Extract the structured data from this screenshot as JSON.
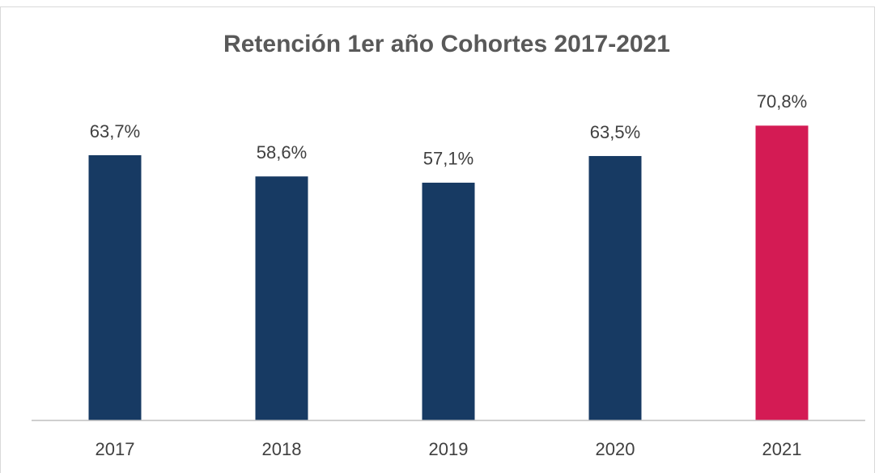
{
  "chart_data": {
    "type": "bar",
    "title": "Retención 1er año Cohortes 2017-2021",
    "categories": [
      "2017",
      "2018",
      "2019",
      "2020",
      "2021"
    ],
    "values": [
      63.7,
      58.6,
      57.1,
      63.5,
      70.8
    ],
    "value_labels": [
      "63,7%",
      "58,6%",
      "57,1%",
      "63,5%",
      "70,8%"
    ],
    "colors": [
      "#173a63",
      "#173a63",
      "#173a63",
      "#173a63",
      "#d41b54"
    ],
    "ylim": [
      0,
      80
    ]
  }
}
